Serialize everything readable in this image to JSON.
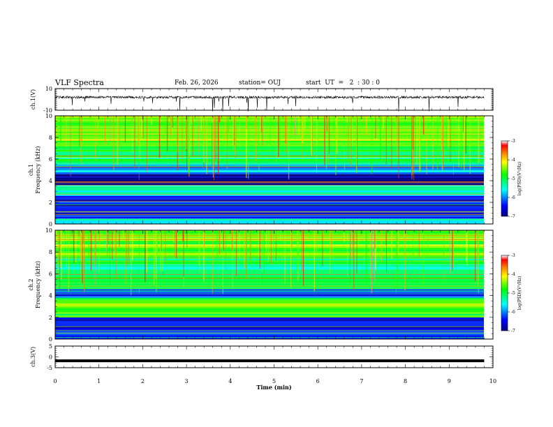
{
  "header": {
    "title": "VLF Spectra",
    "date": "Feb. 26, 2026",
    "station": "station= OUJ",
    "start_ut": "start  UT  =   2  : 30 : 0"
  },
  "chart_data": [
    {
      "type": "line",
      "panel": "ch1-waveform",
      "ylabel": "ch.1(V)",
      "ylim": [
        -10,
        10
      ],
      "yticks": [
        "10",
        "-10"
      ],
      "x": [
        0,
        9.8
      ],
      "series": [
        {
          "values": [
            2,
            2
          ]
        }
      ],
      "note_values": "noisy trace around +2 V with occasional spikes"
    },
    {
      "type": "heatmap",
      "panel": "ch1-spectrogram",
      "ylabel_line1": "ch.1",
      "ylabel_line2": "Frequency  (kHz)",
      "ylim": [
        0,
        10
      ],
      "yticks": [
        "0",
        "2",
        "4",
        "6",
        "8",
        "10"
      ],
      "colorbar": {
        "label": "log(PSD)(V²/Hz)",
        "range": [
          -7,
          -3
        ],
        "ticks": [
          "-3",
          "-4",
          "-5",
          "-6",
          "-7"
        ],
        "colormap": [
          "#00007f",
          "#0000ff",
          "#00ffff",
          "#00ff00",
          "#ffff00",
          "#ff7f00",
          "#ff0000",
          "#ffffff"
        ]
      },
      "bands": [
        {
          "from": 0.0,
          "to": 0.5,
          "level": -5.3
        },
        {
          "from": 0.5,
          "to": 2.6,
          "level": -6.5
        },
        {
          "from": 2.6,
          "to": 3.6,
          "level": -5.6
        },
        {
          "from": 3.6,
          "to": 4.6,
          "level": -6.9
        },
        {
          "from": 4.6,
          "to": 5.5,
          "level": -5.8
        },
        {
          "from": 5.5,
          "to": 7.2,
          "level": -5.1
        },
        {
          "from": 7.2,
          "to": 10.0,
          "level": -4.6
        }
      ]
    },
    {
      "type": "heatmap",
      "panel": "ch2-spectrogram",
      "ylabel_line1": "ch.2",
      "ylabel_line2": "Frequency  (kHz)",
      "ylim": [
        0,
        10
      ],
      "yticks": [
        "0",
        "2",
        "4",
        "6",
        "8",
        "10"
      ],
      "colorbar": {
        "label": "log(PSD)(V²/Hz)",
        "range": [
          -7,
          -3
        ],
        "ticks": [
          "-3",
          "-4",
          "-5",
          "-6",
          "-7"
        ],
        "colormap": [
          "#00007f",
          "#0000ff",
          "#00ffff",
          "#00ff00",
          "#ffff00",
          "#ff7f00",
          "#ff0000",
          "#ffffff"
        ]
      },
      "bands": [
        {
          "from": 0.0,
          "to": 0.7,
          "level": -6.3
        },
        {
          "from": 0.7,
          "to": 2.0,
          "level": -6.7
        },
        {
          "from": 2.0,
          "to": 3.8,
          "level": -4.7
        },
        {
          "from": 3.8,
          "to": 4.6,
          "level": -6.2
        },
        {
          "from": 4.6,
          "to": 6.4,
          "level": -4.9
        },
        {
          "from": 6.4,
          "to": 7.4,
          "level": -5.2
        },
        {
          "from": 7.4,
          "to": 10.0,
          "level": -4.6
        }
      ]
    },
    {
      "type": "line",
      "panel": "ch3-waveform",
      "ylabel": "ch.3(V)",
      "ylim": [
        -5,
        5
      ],
      "yticks": [
        "5",
        "0",
        "-5"
      ],
      "x": [
        0,
        9.8
      ],
      "series": [
        {
          "values": [
            -1.8,
            -1.8
          ]
        }
      ]
    }
  ],
  "xaxis": {
    "label": "Time  (min)",
    "xlim": [
      0,
      10
    ],
    "ticks": [
      "0",
      "1",
      "2",
      "3",
      "4",
      "5",
      "6",
      "7",
      "8",
      "9",
      "10"
    ]
  }
}
